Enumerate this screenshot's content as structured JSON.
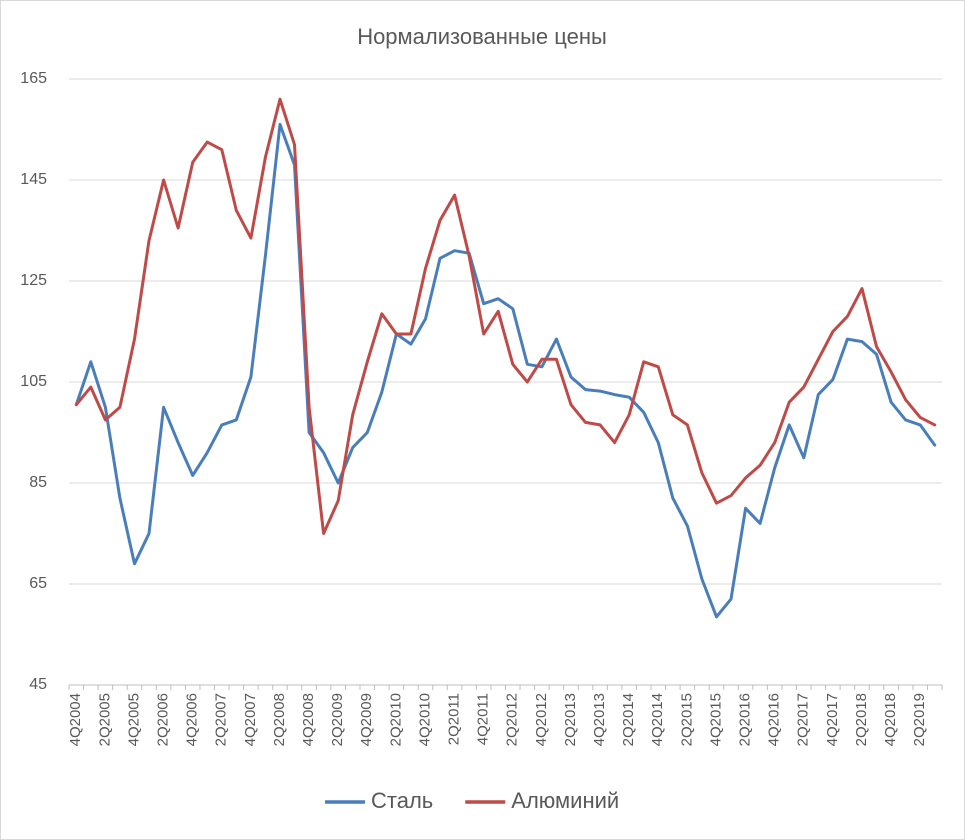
{
  "chart_data": {
    "type": "line",
    "title": "Нормализованные цены",
    "categories": [
      "4Q2004",
      null,
      "2Q2005",
      null,
      "4Q2005",
      null,
      "2Q2006",
      null,
      "4Q2006",
      null,
      "2Q2007",
      null,
      "4Q2007",
      null,
      "2Q2008",
      null,
      "4Q2008",
      null,
      "2Q2009",
      null,
      "4Q2009",
      null,
      "2Q2010",
      null,
      "4Q2010",
      null,
      "2Q2011",
      null,
      "4Q2011",
      null,
      "2Q2012",
      null,
      "4Q2012",
      null,
      "2Q2013",
      null,
      "4Q2013",
      null,
      "2Q2014",
      null,
      "4Q2014",
      null,
      "2Q2015",
      null,
      "4Q2015",
      null,
      "2Q2016",
      null,
      "4Q2016",
      null,
      "2Q2017",
      null,
      "4Q2017",
      null,
      "2Q2018",
      null,
      "4Q2018",
      null,
      "2Q2019",
      null
    ],
    "series": [
      {
        "name": "Сталь",
        "color": "#4a7ebb",
        "values": [
          100.5,
          109,
          100,
          82,
          69,
          75,
          100,
          93,
          86.5,
          91,
          96.5,
          97.5,
          106,
          130,
          156,
          148,
          95,
          91,
          85,
          92,
          95,
          103,
          114.5,
          112.5,
          117.5,
          129.5,
          131,
          130.5,
          120.5,
          121.5,
          119.5,
          108.5,
          108,
          113.5,
          106,
          103.5,
          103.2,
          102.5,
          102,
          99,
          93,
          82,
          76.5,
          66,
          58.5,
          62,
          80,
          77,
          88,
          96.5,
          90,
          102.5,
          105.5,
          113.5,
          113,
          110.5,
          101,
          97.5,
          96.5,
          92.5
        ]
      },
      {
        "name": "Алюминий",
        "color": "#be4b48",
        "values": [
          100.5,
          104,
          97.5,
          100,
          113.5,
          133,
          145,
          135.5,
          148.5,
          152.5,
          151,
          139,
          133.5,
          149.5,
          161,
          152,
          100,
          75,
          81.5,
          98.5,
          109,
          118.5,
          114.5,
          114.5,
          127.5,
          137,
          142,
          130,
          114.5,
          119,
          108.5,
          105,
          109.5,
          109.5,
          100.5,
          97,
          96.5,
          93,
          98.5,
          109,
          108,
          98.5,
          96.5,
          87,
          81,
          82.5,
          86,
          88.5,
          93,
          101,
          104,
          109.5,
          115,
          118,
          123.5,
          112,
          107,
          101.5,
          98,
          96.5
        ]
      }
    ],
    "ylim": [
      45,
      165
    ],
    "yticks": [
      45,
      65,
      85,
      105,
      125,
      145,
      165
    ],
    "grid": true,
    "legend": "bottom"
  }
}
